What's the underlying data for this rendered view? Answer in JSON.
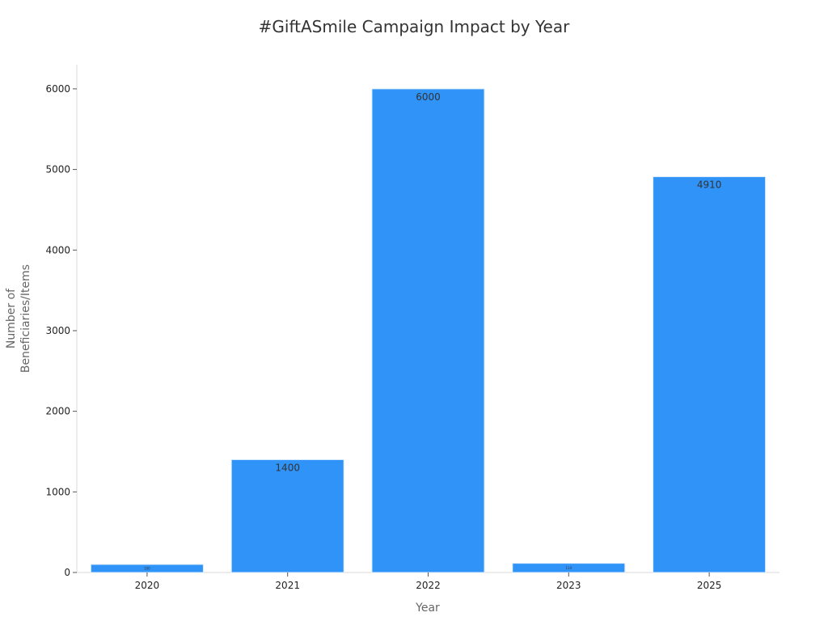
{
  "chart_data": {
    "type": "bar",
    "title": "#GiftASmile Campaign Impact by Year",
    "xlabel": "Year",
    "ylabel": [
      "Number of",
      "Beneficiaries/Items"
    ],
    "categories": [
      "2020",
      "2021",
      "2022",
      "2023",
      "2025"
    ],
    "values": [
      100,
      1400,
      6000,
      114,
      4910
    ],
    "value_labels": [
      "100",
      "1400",
      "6000",
      "114",
      "4910"
    ],
    "ylim": [
      0,
      6300
    ],
    "yticks": [
      0,
      1000,
      2000,
      3000,
      4000,
      5000,
      6000
    ],
    "grid": false,
    "bar_color": "#2f93f8",
    "bar_edge_color": "#dcecfb"
  }
}
